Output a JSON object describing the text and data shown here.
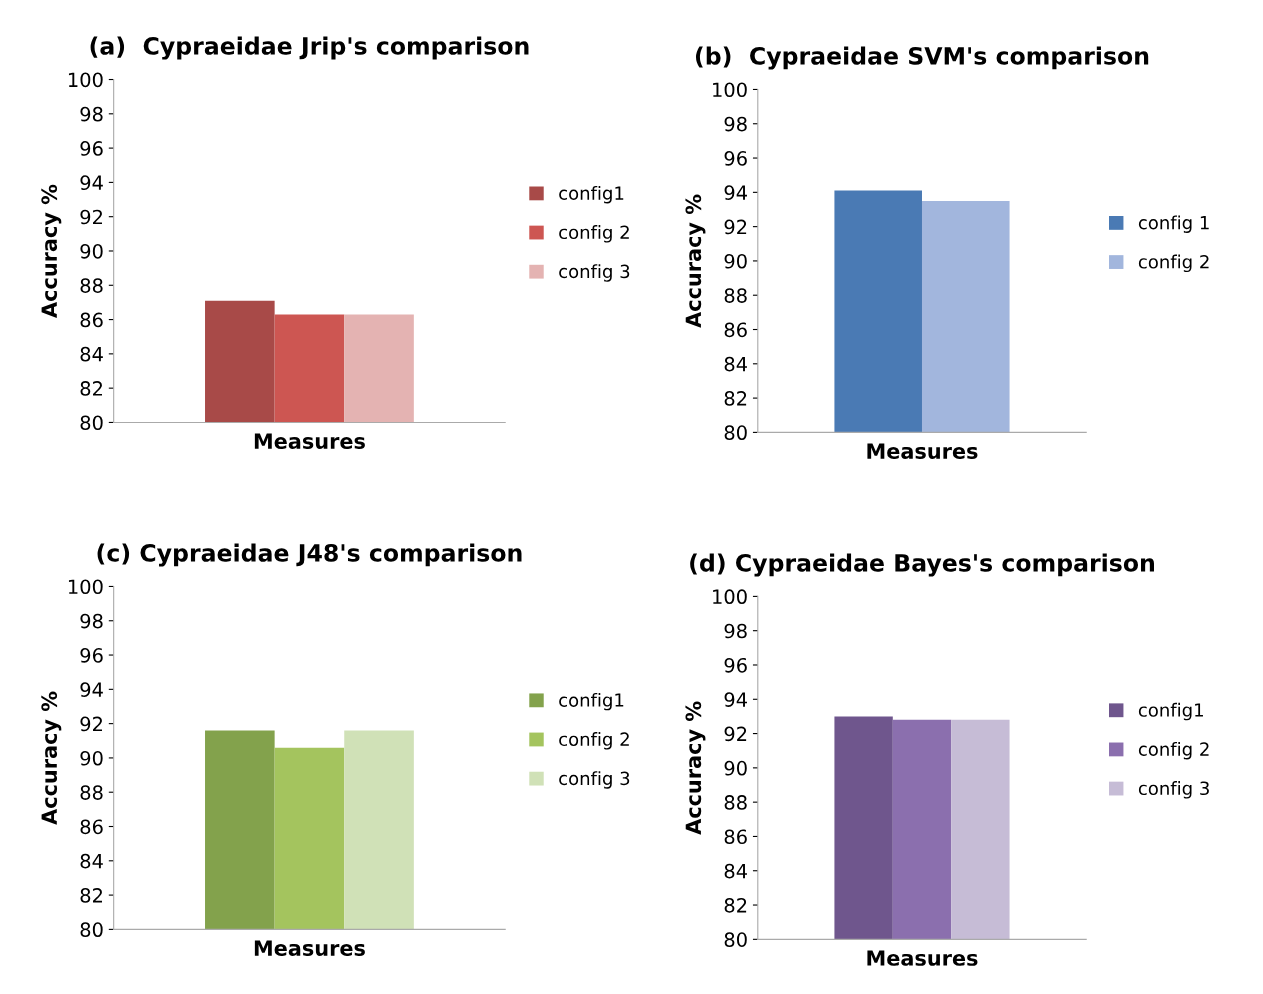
{
  "chart_data": [
    {
      "type": "bar",
      "title": "(a)  Cypraeidae Jrip's comparison",
      "xlabel": "Measures",
      "ylabel": "Accuracy %",
      "categories": [
        null
      ],
      "ylim": [
        80,
        100
      ],
      "yticks": [
        80,
        82,
        84,
        86,
        88,
        90,
        92,
        94,
        96,
        98,
        100
      ],
      "grid": false,
      "legend": "right",
      "series": [
        {
          "name": "config1",
          "color": "#a84a48",
          "values": [
            87.1
          ]
        },
        {
          "name": "config 2",
          "color": "#cd5652",
          "values": [
            86.3
          ]
        },
        {
          "name": "config 3",
          "color": "#e4b3b2",
          "values": [
            86.3
          ]
        }
      ]
    },
    {
      "type": "bar",
      "title": "(b)  Cypraeidae SVM's comparison",
      "xlabel": "Measures",
      "ylabel": "Accuracy %",
      "categories": [
        null
      ],
      "ylim": [
        80,
        100
      ],
      "yticks": [
        80,
        82,
        84,
        86,
        88,
        90,
        92,
        94,
        96,
        98,
        100
      ],
      "grid": false,
      "legend": "right",
      "series": [
        {
          "name": "config 1",
          "color": "#4a7ab4",
          "values": [
            94.1
          ]
        },
        {
          "name": "config 2",
          "color": "#a2b6dd",
          "values": [
            93.5
          ]
        }
      ]
    },
    {
      "type": "bar",
      "title": "(c) Cypraeidae J48's comparison",
      "xlabel": "Measures",
      "ylabel": "Accuracy %",
      "categories": [
        null
      ],
      "ylim": [
        80,
        100
      ],
      "yticks": [
        80,
        82,
        84,
        86,
        88,
        90,
        92,
        94,
        96,
        98,
        100
      ],
      "grid": false,
      "legend": "right",
      "series": [
        {
          "name": "config1",
          "color": "#83a24c",
          "values": [
            91.6
          ]
        },
        {
          "name": "config 2",
          "color": "#a4c45e",
          "values": [
            90.6
          ]
        },
        {
          "name": "config 3",
          "color": "#d0e1b7",
          "values": [
            91.6
          ]
        }
      ]
    },
    {
      "type": "bar",
      "title": "(d) Cypraeidae Bayes's comparison",
      "xlabel": "Measures",
      "ylabel": "Accuracy %",
      "categories": [
        null
      ],
      "ylim": [
        80,
        100
      ],
      "yticks": [
        80,
        82,
        84,
        86,
        88,
        90,
        92,
        94,
        96,
        98,
        100
      ],
      "grid": false,
      "legend": "right",
      "series": [
        {
          "name": "config1",
          "color": "#6f568d",
          "values": [
            93.0
          ]
        },
        {
          "name": "config 2",
          "color": "#8b6fae",
          "values": [
            92.8
          ]
        },
        {
          "name": "config 3",
          "color": "#c6bcd6",
          "values": [
            92.8
          ]
        }
      ]
    }
  ]
}
